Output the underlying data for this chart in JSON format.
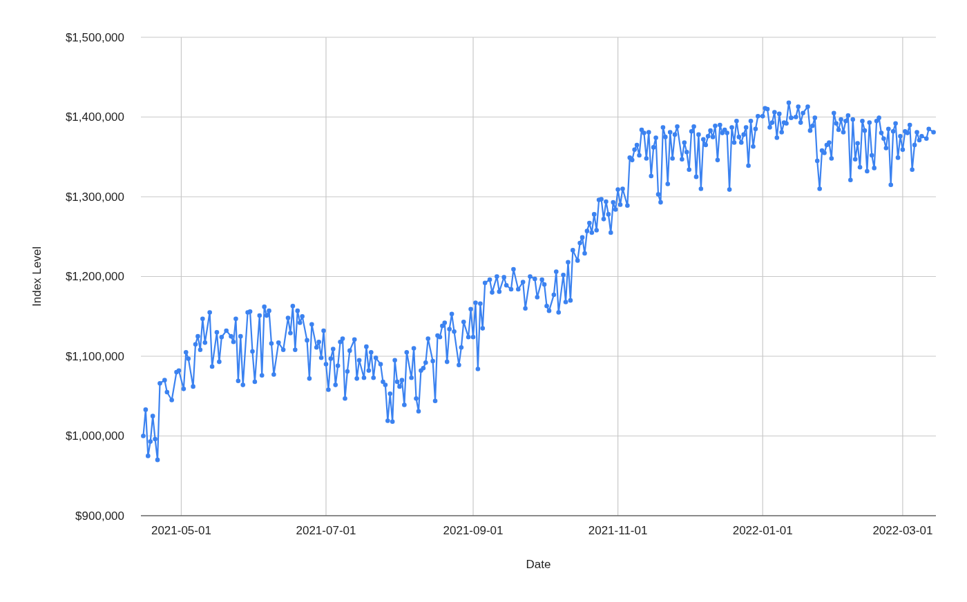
{
  "chart_data": {
    "type": "line",
    "xlabel": "Date",
    "ylabel": "Index Level",
    "grid": true,
    "marker": "circle",
    "xlim": [
      "2021-04-14",
      "2022-03-15"
    ],
    "xticks": [
      "2021-05-01",
      "2021-07-01",
      "2021-09-01",
      "2021-11-01",
      "2022-01-01",
      "2022-03-01"
    ],
    "ylim": [
      900000,
      1500000
    ],
    "yticks": [
      {
        "value": 900000,
        "label": "$900,000"
      },
      {
        "value": 1000000,
        "label": "$1,000,000"
      },
      {
        "value": 1100000,
        "label": "$1,100,000"
      },
      {
        "value": 1200000,
        "label": "$1,200,000"
      },
      {
        "value": 1300000,
        "label": "$1,300,000"
      },
      {
        "value": 1400000,
        "label": "$1,400,000"
      },
      {
        "value": 1500000,
        "label": "$1,500,000"
      }
    ],
    "x": [
      "2021-04-15",
      "2021-04-16",
      "2021-04-17",
      "2021-04-18",
      "2021-04-19",
      "2021-04-20",
      "2021-04-21",
      "2021-04-22",
      "2021-04-24",
      "2021-04-25",
      "2021-04-27",
      "2021-04-29",
      "2021-04-30",
      "2021-05-02",
      "2021-05-03",
      "2021-05-04",
      "2021-05-06",
      "2021-05-07",
      "2021-05-08",
      "2021-05-09",
      "2021-05-10",
      "2021-05-11",
      "2021-05-13",
      "2021-05-14",
      "2021-05-16",
      "2021-05-17",
      "2021-05-18",
      "2021-05-20",
      "2021-05-22",
      "2021-05-23",
      "2021-05-24",
      "2021-05-25",
      "2021-05-26",
      "2021-05-27",
      "2021-05-29",
      "2021-05-30",
      "2021-05-31",
      "2021-06-01",
      "2021-06-03",
      "2021-06-04",
      "2021-06-05",
      "2021-06-06",
      "2021-06-07",
      "2021-06-08",
      "2021-06-09",
      "2021-06-11",
      "2021-06-13",
      "2021-06-15",
      "2021-06-16",
      "2021-06-17",
      "2021-06-18",
      "2021-06-19",
      "2021-06-20",
      "2021-06-21",
      "2021-06-23",
      "2021-06-24",
      "2021-06-25",
      "2021-06-27",
      "2021-06-28",
      "2021-06-29",
      "2021-06-30",
      "2021-07-01",
      "2021-07-02",
      "2021-07-03",
      "2021-07-04",
      "2021-07-05",
      "2021-07-06",
      "2021-07-07",
      "2021-07-08",
      "2021-07-09",
      "2021-07-10",
      "2021-07-11",
      "2021-07-13",
      "2021-07-14",
      "2021-07-15",
      "2021-07-17",
      "2021-07-18",
      "2021-07-19",
      "2021-07-20",
      "2021-07-21",
      "2021-07-22",
      "2021-07-24",
      "2021-07-25",
      "2021-07-26",
      "2021-07-27",
      "2021-07-28",
      "2021-07-29",
      "2021-07-30",
      "2021-07-31",
      "2021-08-01",
      "2021-08-02",
      "2021-08-03",
      "2021-08-04",
      "2021-08-06",
      "2021-08-07",
      "2021-08-08",
      "2021-08-09",
      "2021-08-10",
      "2021-08-11",
      "2021-08-12",
      "2021-08-13",
      "2021-08-15",
      "2021-08-16",
      "2021-08-17",
      "2021-08-18",
      "2021-08-19",
      "2021-08-20",
      "2021-08-21",
      "2021-08-22",
      "2021-08-23",
      "2021-08-24",
      "2021-08-26",
      "2021-08-27",
      "2021-08-28",
      "2021-08-30",
      "2021-08-31",
      "2021-09-01",
      "2021-09-02",
      "2021-09-03",
      "2021-09-04",
      "2021-09-05",
      "2021-09-06",
      "2021-09-08",
      "2021-09-09",
      "2021-09-11",
      "2021-09-12",
      "2021-09-14",
      "2021-09-15",
      "2021-09-17",
      "2021-09-18",
      "2021-09-20",
      "2021-09-22",
      "2021-09-23",
      "2021-09-25",
      "2021-09-27",
      "2021-09-28",
      "2021-09-30",
      "2021-10-01",
      "2021-10-02",
      "2021-10-03",
      "2021-10-05",
      "2021-10-06",
      "2021-10-07",
      "2021-10-09",
      "2021-10-10",
      "2021-10-11",
      "2021-10-12",
      "2021-10-13",
      "2021-10-15",
      "2021-10-16",
      "2021-10-17",
      "2021-10-18",
      "2021-10-19",
      "2021-10-20",
      "2021-10-21",
      "2021-10-22",
      "2021-10-23",
      "2021-10-24",
      "2021-10-25",
      "2021-10-26",
      "2021-10-27",
      "2021-10-28",
      "2021-10-29",
      "2021-10-30",
      "2021-10-31",
      "2021-11-01",
      "2021-11-02",
      "2021-11-03",
      "2021-11-05",
      "2021-11-06",
      "2021-11-07",
      "2021-11-08",
      "2021-11-09",
      "2021-11-10",
      "2021-11-11",
      "2021-11-12",
      "2021-11-13",
      "2021-11-14",
      "2021-11-15",
      "2021-11-16",
      "2021-11-17",
      "2021-11-18",
      "2021-11-19",
      "2021-11-20",
      "2021-11-21",
      "2021-11-22",
      "2021-11-23",
      "2021-11-24",
      "2021-11-25",
      "2021-11-26",
      "2021-11-28",
      "2021-11-29",
      "2021-11-30",
      "2021-12-01",
      "2021-12-02",
      "2021-12-03",
      "2021-12-04",
      "2021-12-05",
      "2021-12-06",
      "2021-12-07",
      "2021-12-08",
      "2021-12-09",
      "2021-12-10",
      "2021-12-11",
      "2021-12-12",
      "2021-12-13",
      "2021-12-14",
      "2021-12-15",
      "2021-12-16",
      "2021-12-17",
      "2021-12-18",
      "2021-12-19",
      "2021-12-20",
      "2021-12-21",
      "2021-12-22",
      "2021-12-23",
      "2021-12-24",
      "2021-12-25",
      "2021-12-26",
      "2021-12-27",
      "2021-12-28",
      "2021-12-29",
      "2021-12-30",
      "2022-01-01",
      "2022-01-02",
      "2022-01-03",
      "2022-01-04",
      "2022-01-05",
      "2022-01-06",
      "2022-01-07",
      "2022-01-08",
      "2022-01-09",
      "2022-01-10",
      "2022-01-11",
      "2022-01-12",
      "2022-01-13",
      "2022-01-15",
      "2022-01-16",
      "2022-01-17",
      "2022-01-18",
      "2022-01-20",
      "2022-01-21",
      "2022-01-22",
      "2022-01-23",
      "2022-01-24",
      "2022-01-25",
      "2022-01-26",
      "2022-01-27",
      "2022-01-28",
      "2022-01-29",
      "2022-01-30",
      "2022-01-31",
      "2022-02-01",
      "2022-02-02",
      "2022-02-03",
      "2022-02-04",
      "2022-02-05",
      "2022-02-06",
      "2022-02-07",
      "2022-02-08",
      "2022-02-09",
      "2022-02-10",
      "2022-02-11",
      "2022-02-12",
      "2022-02-13",
      "2022-02-14",
      "2022-02-15",
      "2022-02-16",
      "2022-02-17",
      "2022-02-18",
      "2022-02-19",
      "2022-02-20",
      "2022-02-21",
      "2022-02-22",
      "2022-02-23",
      "2022-02-24",
      "2022-02-25",
      "2022-02-26",
      "2022-02-27",
      "2022-02-28",
      "2022-03-01",
      "2022-03-02",
      "2022-03-03",
      "2022-03-04",
      "2022-03-05",
      "2022-03-06",
      "2022-03-07",
      "2022-03-08",
      "2022-03-09",
      "2022-03-11",
      "2022-03-12",
      "2022-03-14"
    ],
    "series": [
      {
        "color": "#3b82f0",
        "values": [
          1000000,
          1033000,
          975000,
          993000,
          1025000,
          996000,
          970000,
          1066000,
          1070000,
          1055000,
          1045000,
          1080000,
          1082000,
          1059000,
          1105000,
          1097000,
          1062000,
          1115000,
          1125000,
          1108000,
          1147000,
          1117000,
          1155000,
          1087000,
          1130000,
          1093000,
          1124000,
          1132000,
          1125000,
          1118000,
          1147000,
          1069000,
          1125000,
          1064000,
          1155000,
          1156000,
          1106000,
          1068000,
          1151000,
          1076000,
          1162000,
          1151000,
          1157000,
          1116000,
          1077000,
          1117000,
          1108000,
          1148000,
          1129000,
          1163000,
          1108000,
          1157000,
          1142000,
          1150000,
          1120000,
          1072000,
          1140000,
          1111000,
          1118000,
          1098000,
          1132000,
          1090000,
          1058000,
          1097000,
          1109000,
          1064000,
          1088000,
          1118000,
          1122000,
          1047000,
          1081000,
          1107000,
          1121000,
          1072000,
          1095000,
          1073000,
          1112000,
          1082000,
          1105000,
          1073000,
          1098000,
          1090000,
          1068000,
          1064000,
          1019000,
          1053000,
          1018000,
          1095000,
          1068000,
          1062000,
          1070000,
          1039000,
          1105000,
          1073000,
          1110000,
          1047000,
          1031000,
          1082000,
          1085000,
          1092000,
          1122000,
          1094000,
          1044000,
          1126000,
          1124000,
          1138000,
          1142000,
          1093000,
          1134000,
          1153000,
          1131000,
          1089000,
          1111000,
          1143000,
          1124000,
          1159000,
          1124000,
          1167000,
          1084000,
          1166000,
          1135000,
          1192000,
          1196000,
          1180000,
          1200000,
          1181000,
          1199000,
          1189000,
          1184000,
          1209000,
          1184000,
          1193000,
          1160000,
          1200000,
          1197000,
          1174000,
          1196000,
          1190000,
          1163000,
          1157000,
          1177000,
          1206000,
          1155000,
          1202000,
          1168000,
          1218000,
          1170000,
          1233000,
          1220000,
          1242000,
          1249000,
          1229000,
          1257000,
          1267000,
          1255000,
          1278000,
          1258000,
          1296000,
          1297000,
          1272000,
          1294000,
          1278000,
          1255000,
          1293000,
          1284000,
          1309000,
          1290000,
          1310000,
          1289000,
          1349000,
          1346000,
          1359000,
          1365000,
          1352000,
          1384000,
          1380000,
          1348000,
          1381000,
          1326000,
          1362000,
          1374000,
          1303000,
          1293000,
          1387000,
          1375000,
          1316000,
          1381000,
          1348000,
          1378000,
          1388000,
          1347000,
          1368000,
          1356000,
          1334000,
          1382000,
          1388000,
          1325000,
          1378000,
          1310000,
          1372000,
          1365000,
          1376000,
          1383000,
          1375000,
          1389000,
          1346000,
          1390000,
          1380000,
          1384000,
          1380000,
          1309000,
          1387000,
          1368000,
          1395000,
          1375000,
          1368000,
          1378000,
          1387000,
          1339000,
          1395000,
          1363000,
          1385000,
          1401000,
          1401000,
          1411000,
          1410000,
          1387000,
          1393000,
          1406000,
          1374000,
          1404000,
          1381000,
          1393000,
          1392000,
          1418000,
          1399000,
          1400000,
          1413000,
          1393000,
          1405000,
          1413000,
          1383000,
          1389000,
          1399000,
          1345000,
          1310000,
          1358000,
          1355000,
          1365000,
          1368000,
          1348000,
          1405000,
          1392000,
          1384000,
          1397000,
          1381000,
          1395000,
          1402000,
          1321000,
          1397000,
          1347000,
          1367000,
          1337000,
          1395000,
          1383000,
          1332000,
          1393000,
          1352000,
          1336000,
          1395000,
          1399000,
          1380000,
          1373000,
          1361000,
          1385000,
          1315000,
          1382000,
          1392000,
          1349000,
          1376000,
          1359000,
          1382000,
          1380000,
          1390000,
          1334000,
          1365000,
          1381000,
          1371000,
          1376000,
          1373000,
          1385000,
          1381000
        ]
      }
    ]
  }
}
